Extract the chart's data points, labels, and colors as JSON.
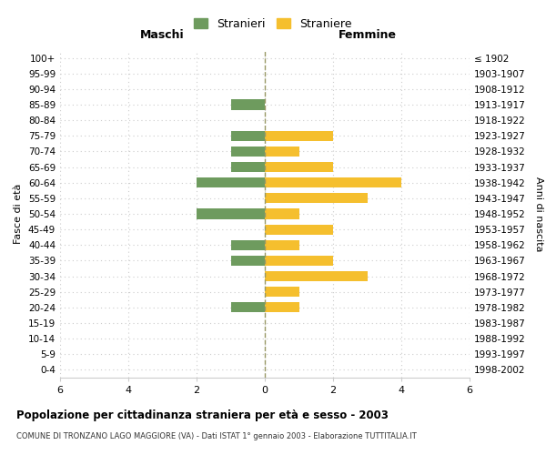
{
  "age_groups": [
    "100+",
    "95-99",
    "90-94",
    "85-89",
    "80-84",
    "75-79",
    "70-74",
    "65-69",
    "60-64",
    "55-59",
    "50-54",
    "45-49",
    "40-44",
    "35-39",
    "30-34",
    "25-29",
    "20-24",
    "15-19",
    "10-14",
    "5-9",
    "0-4"
  ],
  "birth_years": [
    "≤ 1902",
    "1903-1907",
    "1908-1912",
    "1913-1917",
    "1918-1922",
    "1923-1927",
    "1928-1932",
    "1933-1937",
    "1938-1942",
    "1943-1947",
    "1948-1952",
    "1953-1957",
    "1958-1962",
    "1963-1967",
    "1968-1972",
    "1973-1977",
    "1978-1982",
    "1983-1987",
    "1988-1992",
    "1993-1997",
    "1998-2002"
  ],
  "males": [
    0,
    0,
    0,
    1,
    0,
    1,
    1,
    1,
    2,
    0,
    2,
    0,
    1,
    1,
    0,
    0,
    1,
    0,
    0,
    0,
    0
  ],
  "females": [
    0,
    0,
    0,
    0,
    0,
    2,
    1,
    2,
    4,
    3,
    1,
    2,
    1,
    2,
    3,
    1,
    1,
    0,
    0,
    0,
    0
  ],
  "male_color": "#6e9b5e",
  "female_color": "#f5bf2e",
  "grid_color": "#cccccc",
  "center_line_color": "#999966",
  "title": "Popolazione per cittadinanza straniera per età e sesso - 2003",
  "subtitle": "COMUNE DI TRONZANO LAGO MAGGIORE (VA) - Dati ISTAT 1° gennaio 2003 - Elaborazione TUTTITALIA.IT",
  "xlabel_left": "Maschi",
  "xlabel_right": "Femmine",
  "ylabel_left": "Fasce di età",
  "ylabel_right": "Anni di nascita",
  "legend_male": "Stranieri",
  "legend_female": "Straniere",
  "xlim": 6
}
